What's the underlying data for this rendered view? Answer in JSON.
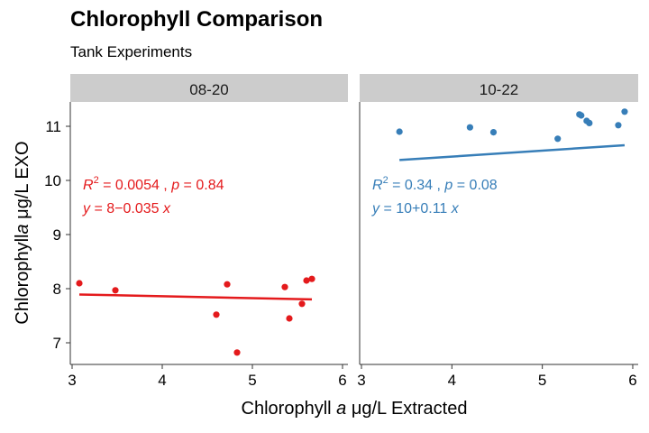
{
  "title": "Chlorophyll Comparison",
  "subtitle": "Tank Experiments",
  "colors": {
    "panel1": "#e41a1c",
    "panel2": "#377eb8",
    "strip": "#cccccc",
    "axis": "#333333"
  },
  "chart_data": {
    "type": "scatter",
    "title": "Chlorophyll Comparison",
    "subtitle": "Tank Experiments",
    "xlabel": "Chlorophyll a μg/L Extracted",
    "ylabel": "Chlorophyll a μg/L EXO",
    "ylim": [
      6.6,
      11.45
    ],
    "y_ticks": [
      7,
      8,
      9,
      10,
      11
    ],
    "y_tick_labels": [
      "7",
      "8",
      "9",
      "10",
      "11"
    ],
    "grid": false,
    "legend": "none",
    "panels": [
      {
        "strip": "08-20",
        "color": "#e41a1c",
        "xlim": [
          2.98,
          6.06
        ],
        "x_ticks": [
          3,
          4,
          5,
          6
        ],
        "x_tick_labels": [
          "3",
          "4",
          "5",
          "6"
        ],
        "x": [
          3.08,
          3.48,
          4.6,
          4.72,
          4.83,
          5.36,
          5.41,
          5.55,
          5.6,
          5.66
        ],
        "y": [
          8.1,
          7.97,
          7.52,
          8.08,
          6.82,
          8.03,
          7.45,
          7.72,
          8.15,
          8.18
        ],
        "fit": {
          "slope": -0.035,
          "intercept": 8.0,
          "x_range": [
            3.08,
            5.66
          ]
        },
        "stats": {
          "r2_prefix": "R",
          "r2_value": "= 0.0054 ,",
          "p_prefix": "p",
          "p_value": "= 0.84"
        },
        "equation": {
          "lhs": "y",
          "rhs": "= 8−0.035",
          "var": "x"
        }
      },
      {
        "strip": "10-22",
        "color": "#377eb8",
        "xlim": [
          2.98,
          6.06
        ],
        "x_ticks": [
          3,
          4,
          5,
          6
        ],
        "x_tick_labels": [
          "3",
          "4",
          "5",
          "6"
        ],
        "x": [
          3.42,
          4.2,
          4.46,
          5.17,
          5.41,
          5.43,
          5.49,
          5.52,
          5.84,
          5.91
        ],
        "y": [
          10.9,
          10.98,
          10.89,
          10.77,
          11.22,
          11.2,
          11.1,
          11.06,
          11.02,
          11.27
        ],
        "fit": {
          "slope": 0.11,
          "intercept": 10.0,
          "x_range": [
            3.42,
            5.91
          ]
        },
        "stats": {
          "r2_prefix": "R",
          "r2_value": "= 0.34 ,",
          "p_prefix": "p",
          "p_value": "= 0.08"
        },
        "equation": {
          "lhs": "y",
          "rhs": "= 10+0.11",
          "var": "x"
        }
      }
    ]
  }
}
